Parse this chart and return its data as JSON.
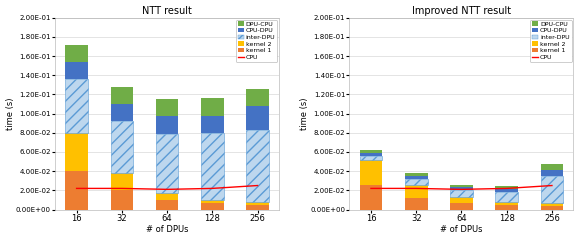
{
  "categories": [
    "16",
    "32",
    "64",
    "128",
    "256"
  ],
  "title1": "NTT result",
  "title2": "Improved NTT result",
  "xlabel": "# of DPUs",
  "ylabel": "time (s)",
  "ylim": [
    0,
    0.2
  ],
  "yticks": [
    0.0,
    0.02,
    0.04,
    0.06,
    0.08,
    0.1,
    0.12,
    0.14,
    0.16,
    0.18,
    0.2
  ],
  "ntt": {
    "kernel1": [
      0.04,
      0.02,
      0.01,
      0.007,
      0.005
    ],
    "kernel2": [
      0.04,
      0.018,
      0.007,
      0.003,
      0.003
    ],
    "inter_dpu": [
      0.056,
      0.054,
      0.062,
      0.07,
      0.075
    ],
    "cpu_dpu": [
      0.018,
      0.018,
      0.018,
      0.018,
      0.025
    ],
    "dpu_cpu": [
      0.018,
      0.018,
      0.018,
      0.018,
      0.018
    ],
    "cpu_line": [
      0.022,
      0.022,
      0.021,
      0.022,
      0.025
    ]
  },
  "improved": {
    "kernel1": [
      0.026,
      0.012,
      0.007,
      0.005,
      0.004
    ],
    "kernel2": [
      0.026,
      0.014,
      0.006,
      0.003,
      0.003
    ],
    "inter_dpu": [
      0.004,
      0.006,
      0.007,
      0.01,
      0.028
    ],
    "cpu_dpu": [
      0.003,
      0.003,
      0.003,
      0.003,
      0.006
    ],
    "dpu_cpu": [
      0.003,
      0.003,
      0.003,
      0.003,
      0.006
    ],
    "cpu_line": [
      0.022,
      0.022,
      0.021,
      0.022,
      0.025
    ]
  },
  "colors": {
    "kernel1": "#ED7D31",
    "kernel2": "#FFC000",
    "inter_dpu_face": "#BDD7EE",
    "cpu_dpu": "#4472C4",
    "dpu_cpu": "#70AD47",
    "cpu_line": "#FF0000"
  },
  "background": "#FFFFFF"
}
